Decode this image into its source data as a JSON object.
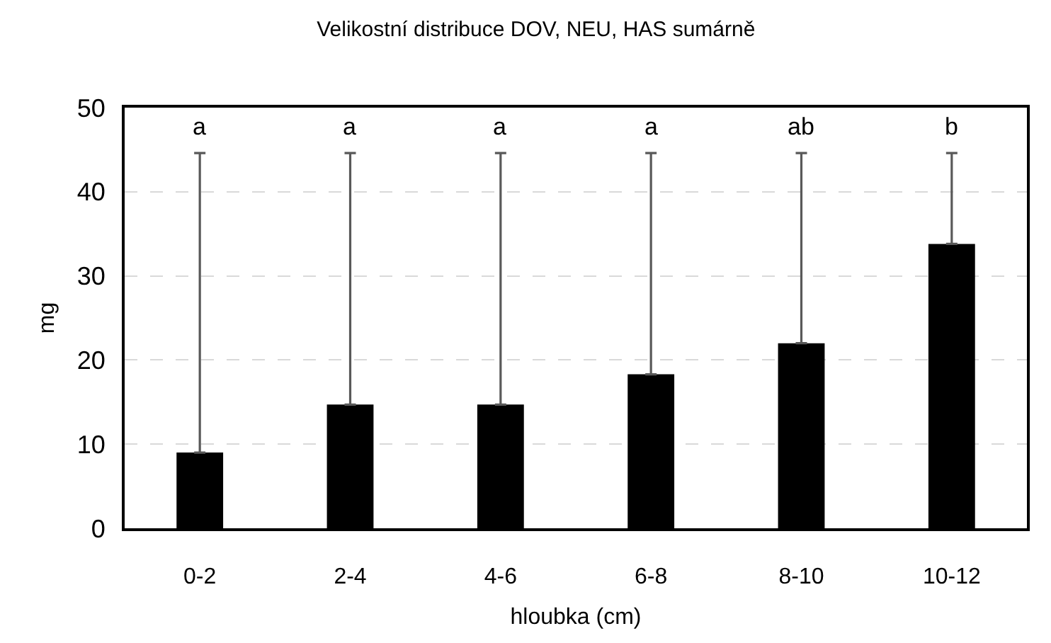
{
  "chart_data": {
    "type": "bar",
    "title": "Velikostní distribuce DOV, NEU, HAS sumárně",
    "xlabel": "hloubka (cm)",
    "ylabel": "mg",
    "categories": [
      "0-2",
      "2-4",
      "4-6",
      "6-8",
      "8-10",
      "10-12"
    ],
    "values": [
      9.0,
      14.7,
      14.7,
      18.3,
      22.0,
      33.8
    ],
    "color": "#000000",
    "errors": [
      [
        9.0,
        44.6
      ],
      [
        14.7,
        44.6
      ],
      [
        14.7,
        44.6
      ],
      [
        18.3,
        44.6
      ],
      [
        22.0,
        44.6
      ],
      [
        33.8,
        44.6
      ]
    ],
    "ylim": [
      0,
      50
    ],
    "yticks": [
      0,
      10,
      20,
      30,
      40,
      50
    ],
    "grid": "y",
    "annotations": [
      "a",
      "a",
      "a",
      "a",
      "ab",
      "b"
    ]
  }
}
